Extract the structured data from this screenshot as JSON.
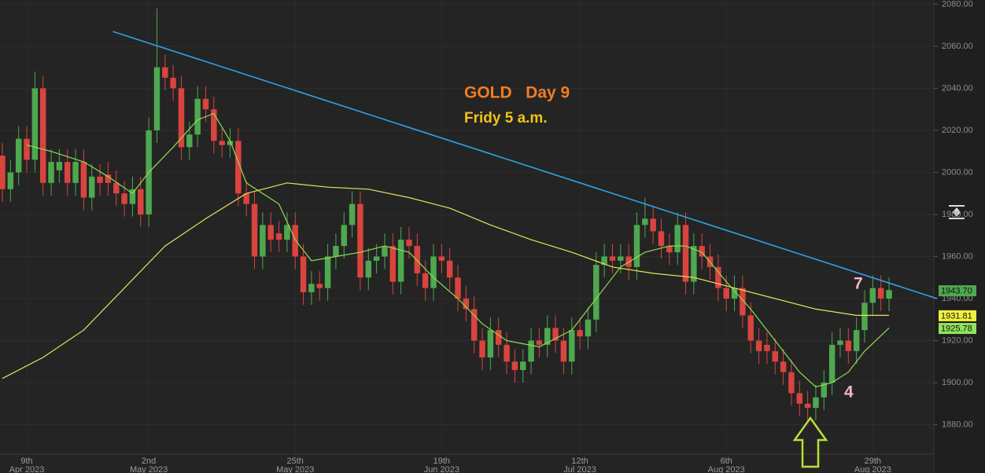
{
  "chart_data": {
    "type": "candlestick",
    "annotations": [
      {
        "text": "GOLD   Day 9",
        "color": "#f47c20"
      },
      {
        "text": "Fridy 5 a.m.",
        "color": "#f2c21b"
      },
      {
        "text": "7",
        "color": "#f7b6c8"
      },
      {
        "text": "4",
        "color": "#f7b6c8"
      }
    ],
    "ylim": [
      1866,
      2082
    ],
    "yticks": [
      {
        "value": 1880,
        "label": "1880.00"
      },
      {
        "value": 1900,
        "label": "1900.00"
      },
      {
        "value": 1920,
        "label": "1920.00"
      },
      {
        "value": 1940,
        "label": "1940.00"
      },
      {
        "value": 1960,
        "label": "1960.00"
      },
      {
        "value": 1980,
        "label": "1980.00"
      },
      {
        "value": 2000,
        "label": "2000.00"
      },
      {
        "value": 2020,
        "label": "2020.00"
      },
      {
        "value": 2040,
        "label": "2040.00"
      },
      {
        "value": 2060,
        "label": "2060.00"
      },
      {
        "value": 2080,
        "label": "2080.00"
      }
    ],
    "xticks": [
      {
        "value": 3,
        "label": "9th",
        "sub": "Apr 2023"
      },
      {
        "value": 18,
        "label": "2nd",
        "sub": "May 2023"
      },
      {
        "value": 36,
        "label": "25th",
        "sub": "May 2023"
      },
      {
        "value": 54,
        "label": "19th",
        "sub": "Jun 2023"
      },
      {
        "value": 71,
        "label": "12th",
        "sub": "Jul 2023"
      },
      {
        "value": 89,
        "label": "6th",
        "sub": "Aug 2023"
      },
      {
        "value": 107,
        "label": "29th",
        "sub": "Aug 2023"
      }
    ],
    "up_color": "#4fa84f",
    "down_color": "#d9443e",
    "open": [
      2008,
      1992,
      2000,
      2016,
      2006,
      2040,
      1995,
      2001,
      2005,
      1995,
      2005,
      1988,
      1998,
      1999,
      1995,
      1990,
      1985,
      1992,
      1980,
      2020,
      2050,
      2045,
      2040,
      2012,
      2018,
      2035,
      2030,
      2015,
      2013,
      2015,
      1990,
      1985,
      1960,
      1975,
      1971,
      1968,
      1975,
      1960,
      1943,
      1947,
      1945,
      1960,
      1965,
      1975,
      1985,
      1950,
      1958,
      1960,
      1965,
      1948,
      1968,
      1965,
      1952,
      1945,
      1960,
      1958,
      1950,
      1940,
      1935,
      1920,
      1912,
      1925,
      1918,
      1910,
      1906,
      1910,
      1920,
      1918,
      1926,
      1920,
      1910,
      1925,
      1922,
      1930,
      1956,
      1960,
      1958,
      1960,
      1955,
      1975,
      1978,
      1972,
      1965,
      1962,
      1975,
      1948,
      1965,
      1960,
      1955,
      1945,
      1940,
      1945,
      1932,
      1920,
      1918,
      1915,
      1910,
      1905,
      1895,
      1890,
      1888,
      1893,
      1900,
      1918,
      1920,
      1915,
      1925,
      1938,
      1945,
      1940
    ],
    "high": [
      2014,
      2006,
      2022,
      2022,
      2048,
      2046,
      2011,
      2011,
      2011,
      2011,
      2011,
      2004,
      2004,
      2005,
      2001,
      1996,
      1998,
      1998,
      2026,
      2078,
      2056,
      2051,
      2046,
      2024,
      2041,
      2041,
      2036,
      2021,
      2021,
      2021,
      1996,
      1991,
      1981,
      1981,
      1977,
      1981,
      1981,
      1966,
      1953,
      1953,
      1966,
      1971,
      1981,
      1991,
      1991,
      1964,
      1966,
      1971,
      1971,
      1974,
      1974,
      1971,
      1958,
      1966,
      1966,
      1964,
      1956,
      1946,
      1941,
      1926,
      1931,
      1931,
      1924,
      1916,
      1916,
      1926,
      1926,
      1932,
      1932,
      1926,
      1931,
      1931,
      1936,
      1962,
      1966,
      1966,
      1966,
      1966,
      1981,
      1988,
      1984,
      1978,
      1971,
      1981,
      1981,
      1971,
      1971,
      1966,
      1961,
      1951,
      1951,
      1951,
      1938,
      1926,
      1924,
      1921,
      1916,
      1911,
      1901,
      1896,
      1899,
      1906,
      1924,
      1926,
      1926,
      1931,
      1944,
      1951,
      1951,
      1950
    ],
    "low": [
      1986,
      1986,
      1994,
      2000,
      2000,
      1989,
      1989,
      1995,
      1989,
      1989,
      1982,
      1982,
      1989,
      1989,
      1984,
      1979,
      1979,
      1974,
      1974,
      2014,
      2039,
      2034,
      2006,
      2006,
      2012,
      2024,
      2009,
      2007,
      2007,
      1984,
      1979,
      1954,
      1954,
      1962,
      1962,
      1962,
      1954,
      1937,
      1937,
      1939,
      1939,
      1954,
      1959,
      1969,
      1944,
      1944,
      1952,
      1954,
      1942,
      1942,
      1959,
      1946,
      1939,
      1939,
      1952,
      1944,
      1934,
      1929,
      1914,
      1906,
      1906,
      1912,
      1904,
      1900,
      1900,
      1904,
      1912,
      1912,
      1914,
      1904,
      1904,
      1916,
      1916,
      1924,
      1950,
      1952,
      1952,
      1949,
      1949,
      1969,
      1966,
      1959,
      1956,
      1956,
      1942,
      1942,
      1954,
      1949,
      1939,
      1934,
      1934,
      1926,
      1914,
      1909,
      1909,
      1904,
      1899,
      1889,
      1884,
      1882,
      1882,
      1887,
      1894,
      1912,
      1909,
      1909,
      1919,
      1932,
      1934,
      1934
    ],
    "close": [
      1992,
      2000,
      2016,
      2006,
      2040,
      1995,
      2005,
      2005,
      1995,
      2005,
      1988,
      1998,
      1995,
      1995,
      1990,
      1985,
      1992,
      1980,
      2020,
      2050,
      2045,
      2040,
      2012,
      2018,
      2035,
      2030,
      2015,
      2013,
      2015,
      1990,
      1985,
      1960,
      1975,
      1968,
      1968,
      1975,
      1960,
      1943,
      1947,
      1945,
      1960,
      1965,
      1975,
      1985,
      1950,
      1958,
      1960,
      1965,
      1948,
      1968,
      1965,
      1952,
      1945,
      1960,
      1958,
      1950,
      1940,
      1935,
      1920,
      1912,
      1925,
      1918,
      1910,
      1906,
      1910,
      1920,
      1918,
      1926,
      1920,
      1910,
      1925,
      1922,
      1930,
      1956,
      1960,
      1958,
      1960,
      1955,
      1975,
      1978,
      1972,
      1965,
      1962,
      1975,
      1948,
      1965,
      1960,
      1955,
      1945,
      1940,
      1945,
      1932,
      1920,
      1915,
      1915,
      1910,
      1905,
      1895,
      1890,
      1888,
      1893,
      1900,
      1918,
      1920,
      1915,
      1925,
      1938,
      1945,
      1940,
      1944
    ],
    "lines": [
      {
        "color": "#8fdc55",
        "x": [
          3,
          6,
          10,
          13,
          16,
          18,
          21,
          24,
          26,
          28,
          30,
          32,
          34,
          36,
          38,
          41,
          44,
          47,
          50,
          53,
          56,
          59,
          62,
          66,
          70,
          73,
          76,
          79,
          82,
          84,
          86,
          89,
          92,
          95,
          98,
          100,
          102,
          104,
          106,
          109
        ],
        "values": [
          2013,
          2010,
          2005,
          1998,
          1990,
          2000,
          2012,
          2025,
          2028,
          2015,
          1995,
          1990,
          1985,
          1968,
          1958,
          1960,
          1962,
          1965,
          1962,
          1950,
          1940,
          1928,
          1920,
          1917,
          1925,
          1940,
          1955,
          1962,
          1965,
          1965,
          1962,
          1948,
          1935,
          1920,
          1905,
          1898,
          1900,
          1905,
          1915,
          1926
        ]
      },
      {
        "color": "#e8e35a",
        "x": [
          0,
          5,
          10,
          15,
          20,
          25,
          30,
          35,
          40,
          45,
          50,
          55,
          60,
          65,
          70,
          75,
          80,
          85,
          90,
          95,
          100,
          105,
          109
        ],
        "values": [
          1902,
          1912,
          1925,
          1945,
          1965,
          1978,
          1990,
          1995,
          1993,
          1992,
          1988,
          1983,
          1975,
          1968,
          1962,
          1955,
          1952,
          1950,
          1945,
          1940,
          1935,
          1932,
          1932
        ]
      },
      {
        "color": "#2ea3e6",
        "x": [
          13.6,
          114.9
        ],
        "values": [
          2067,
          1940
        ]
      }
    ],
    "price_labels": [
      {
        "value": 1943.7,
        "label": "1943.70",
        "color": "#4fa84f"
      },
      {
        "value": 1931.81,
        "label": "1931.81",
        "color": "#f0f040"
      },
      {
        "value": 1925.78,
        "label": "1925.78",
        "color": "#8fe25a"
      }
    ]
  }
}
